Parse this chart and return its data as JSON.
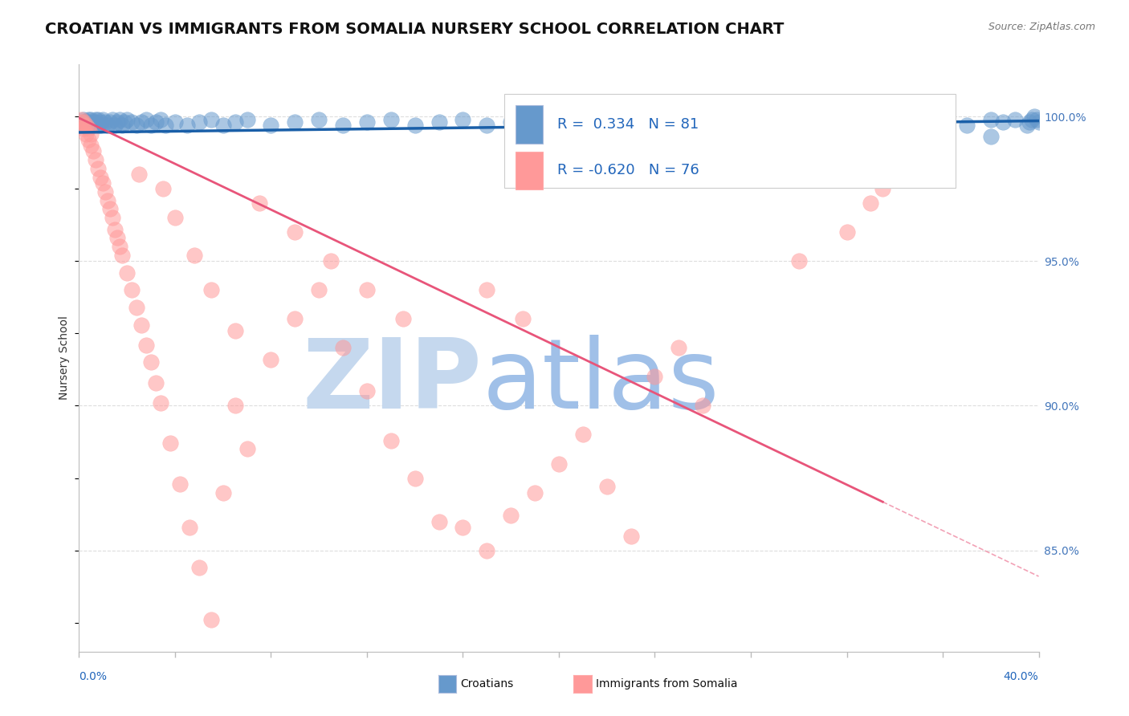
{
  "title": "CROATIAN VS IMMIGRANTS FROM SOMALIA NURSERY SCHOOL CORRELATION CHART",
  "source_text": "Source: ZipAtlas.com",
  "ylabel": "Nursery School",
  "yaxis_labels": [
    "100.0%",
    "95.0%",
    "90.0%",
    "85.0%"
  ],
  "yaxis_values": [
    1.0,
    0.95,
    0.9,
    0.85
  ],
  "legend_croatians": "Croatians",
  "legend_somalia": "Immigrants from Somalia",
  "R_croatians": 0.334,
  "N_croatians": 81,
  "R_somalia": -0.62,
  "N_somalia": 76,
  "color_croatians": "#6699cc",
  "color_somalia": "#ff9999",
  "trendline_color_croatians": "#1a5fa8",
  "trendline_color_somalia": "#e8557a",
  "watermark_zip": "ZIP",
  "watermark_atlas": "atlas",
  "watermark_color_zip": "#c5d8ee",
  "watermark_color_atlas": "#a0c0e8",
  "xlim": [
    0.0,
    0.4
  ],
  "ylim": [
    0.815,
    1.018
  ],
  "grid_color": "#dddddd",
  "background_color": "#ffffff",
  "title_fontsize": 14,
  "croatians_x": [
    0.001,
    0.002,
    0.002,
    0.003,
    0.003,
    0.004,
    0.004,
    0.005,
    0.005,
    0.006,
    0.006,
    0.007,
    0.007,
    0.008,
    0.008,
    0.009,
    0.009,
    0.01,
    0.011,
    0.012,
    0.013,
    0.014,
    0.015,
    0.016,
    0.017,
    0.018,
    0.019,
    0.02,
    0.022,
    0.024,
    0.026,
    0.028,
    0.03,
    0.032,
    0.034,
    0.036,
    0.04,
    0.045,
    0.05,
    0.055,
    0.06,
    0.065,
    0.07,
    0.08,
    0.09,
    0.1,
    0.11,
    0.12,
    0.13,
    0.14,
    0.15,
    0.16,
    0.17,
    0.18,
    0.19,
    0.2,
    0.22,
    0.24,
    0.26,
    0.28,
    0.3,
    0.32,
    0.34,
    0.35,
    0.36,
    0.37,
    0.38,
    0.385,
    0.39,
    0.395,
    0.396,
    0.397,
    0.398,
    0.399,
    0.4,
    0.38,
    0.36,
    0.34,
    0.33,
    0.32,
    0.31
  ],
  "croatians_y": [
    0.997,
    0.998,
    0.999,
    0.997,
    0.998,
    0.998,
    0.999,
    0.997,
    0.999,
    0.998,
    0.997,
    0.999,
    0.998,
    0.997,
    0.999,
    0.998,
    0.997,
    0.999,
    0.998,
    0.997,
    0.998,
    0.999,
    0.997,
    0.998,
    0.999,
    0.997,
    0.998,
    0.999,
    0.998,
    0.997,
    0.998,
    0.999,
    0.997,
    0.998,
    0.999,
    0.997,
    0.998,
    0.997,
    0.998,
    0.999,
    0.997,
    0.998,
    0.999,
    0.997,
    0.998,
    0.999,
    0.997,
    0.998,
    0.999,
    0.997,
    0.998,
    0.999,
    0.997,
    0.998,
    0.999,
    0.997,
    0.998,
    0.999,
    0.998,
    0.997,
    0.999,
    0.998,
    0.997,
    0.999,
    0.998,
    0.997,
    0.999,
    0.998,
    0.999,
    0.997,
    0.998,
    0.999,
    1.0,
    0.999,
    0.998,
    0.993,
    0.994,
    0.995,
    0.994,
    0.993,
    0.994
  ],
  "somalia_x": [
    0.001,
    0.001,
    0.002,
    0.002,
    0.003,
    0.003,
    0.004,
    0.004,
    0.005,
    0.005,
    0.006,
    0.007,
    0.008,
    0.009,
    0.01,
    0.011,
    0.012,
    0.013,
    0.014,
    0.015,
    0.016,
    0.017,
    0.018,
    0.02,
    0.022,
    0.024,
    0.026,
    0.028,
    0.03,
    0.032,
    0.034,
    0.038,
    0.042,
    0.046,
    0.05,
    0.055,
    0.06,
    0.065,
    0.07,
    0.08,
    0.09,
    0.1,
    0.11,
    0.12,
    0.13,
    0.14,
    0.15,
    0.16,
    0.17,
    0.18,
    0.19,
    0.2,
    0.21,
    0.22,
    0.23,
    0.24,
    0.25,
    0.26,
    0.3,
    0.32,
    0.33,
    0.335,
    0.34,
    0.17,
    0.185,
    0.075,
    0.09,
    0.105,
    0.12,
    0.135,
    0.025,
    0.035,
    0.04,
    0.048,
    0.055,
    0.065
  ],
  "somalia_y": [
    0.998,
    0.999,
    0.996,
    0.998,
    0.994,
    0.997,
    0.992,
    0.996,
    0.99,
    0.994,
    0.988,
    0.985,
    0.982,
    0.979,
    0.977,
    0.974,
    0.971,
    0.968,
    0.965,
    0.961,
    0.958,
    0.955,
    0.952,
    0.946,
    0.94,
    0.934,
    0.928,
    0.921,
    0.915,
    0.908,
    0.901,
    0.887,
    0.873,
    0.858,
    0.844,
    0.826,
    0.87,
    0.9,
    0.885,
    0.916,
    0.93,
    0.94,
    0.92,
    0.905,
    0.888,
    0.875,
    0.86,
    0.858,
    0.85,
    0.862,
    0.87,
    0.88,
    0.89,
    0.872,
    0.855,
    0.91,
    0.92,
    0.9,
    0.95,
    0.96,
    0.97,
    0.975,
    0.98,
    0.94,
    0.93,
    0.97,
    0.96,
    0.95,
    0.94,
    0.93,
    0.98,
    0.975,
    0.965,
    0.952,
    0.94,
    0.926
  ],
  "trend_c_x0": 0.0,
  "trend_c_x1": 0.4,
  "trend_c_y0": 0.9945,
  "trend_c_y1": 0.9985,
  "trend_s_x0": 0.0,
  "trend_s_x1": 0.4,
  "trend_s_y0": 0.9995,
  "trend_s_y1": 0.841,
  "trend_s_solid_end": 0.335,
  "trend_s_dash_start": 0.335
}
